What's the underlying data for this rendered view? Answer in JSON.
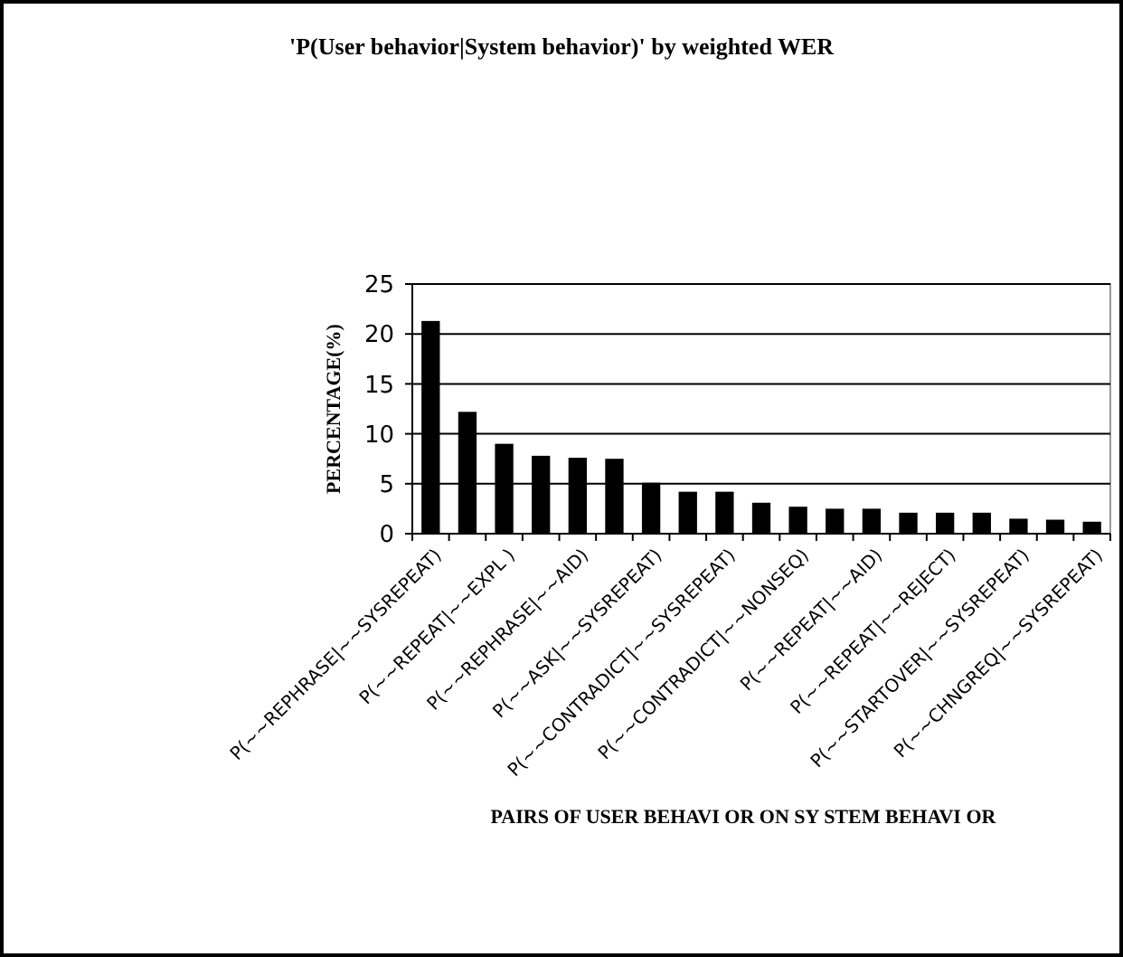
{
  "chart_data": {
    "type": "bar",
    "title": "'P(User behavior|System behavior)' by weighted WER",
    "xlabel": "PAIRS OF USER BEHAVI OR ON SY STEM BEHAVI OR",
    "ylabel": "PERCENTAGE(%)",
    "categories": [
      "P(~~REPHRASE|~~SYSREPEAT)",
      null,
      "P(~~REPEAT|~~EXPL )",
      null,
      "P(~~REPHRASE|~~AID)",
      null,
      "P(~~ASK|~~SYSREPEAT)",
      null,
      "P(~~CONTRADICT|~~SYSREPEAT)",
      null,
      "P(~~CONTRADICT|~~NONSEQ)",
      null,
      "P(~~REPEAT|~~AID)",
      null,
      "P(~~REPEAT|~~REJECT)",
      null,
      "P(~~STARTOVER|~~SYSREPEAT)",
      null,
      "P(~~CHNGREQ|~~SYSREPEAT)"
    ],
    "values": [
      21.3,
      12.2,
      9.0,
      7.8,
      7.6,
      7.5,
      5.1,
      4.2,
      4.2,
      3.1,
      2.7,
      2.5,
      2.5,
      2.1,
      2.1,
      2.1,
      1.5,
      1.4,
      1.2
    ],
    "color": "#000000",
    "ylim": [
      0,
      25
    ],
    "yticks": [
      0,
      5,
      10,
      15,
      20,
      25
    ],
    "grid": "y"
  }
}
